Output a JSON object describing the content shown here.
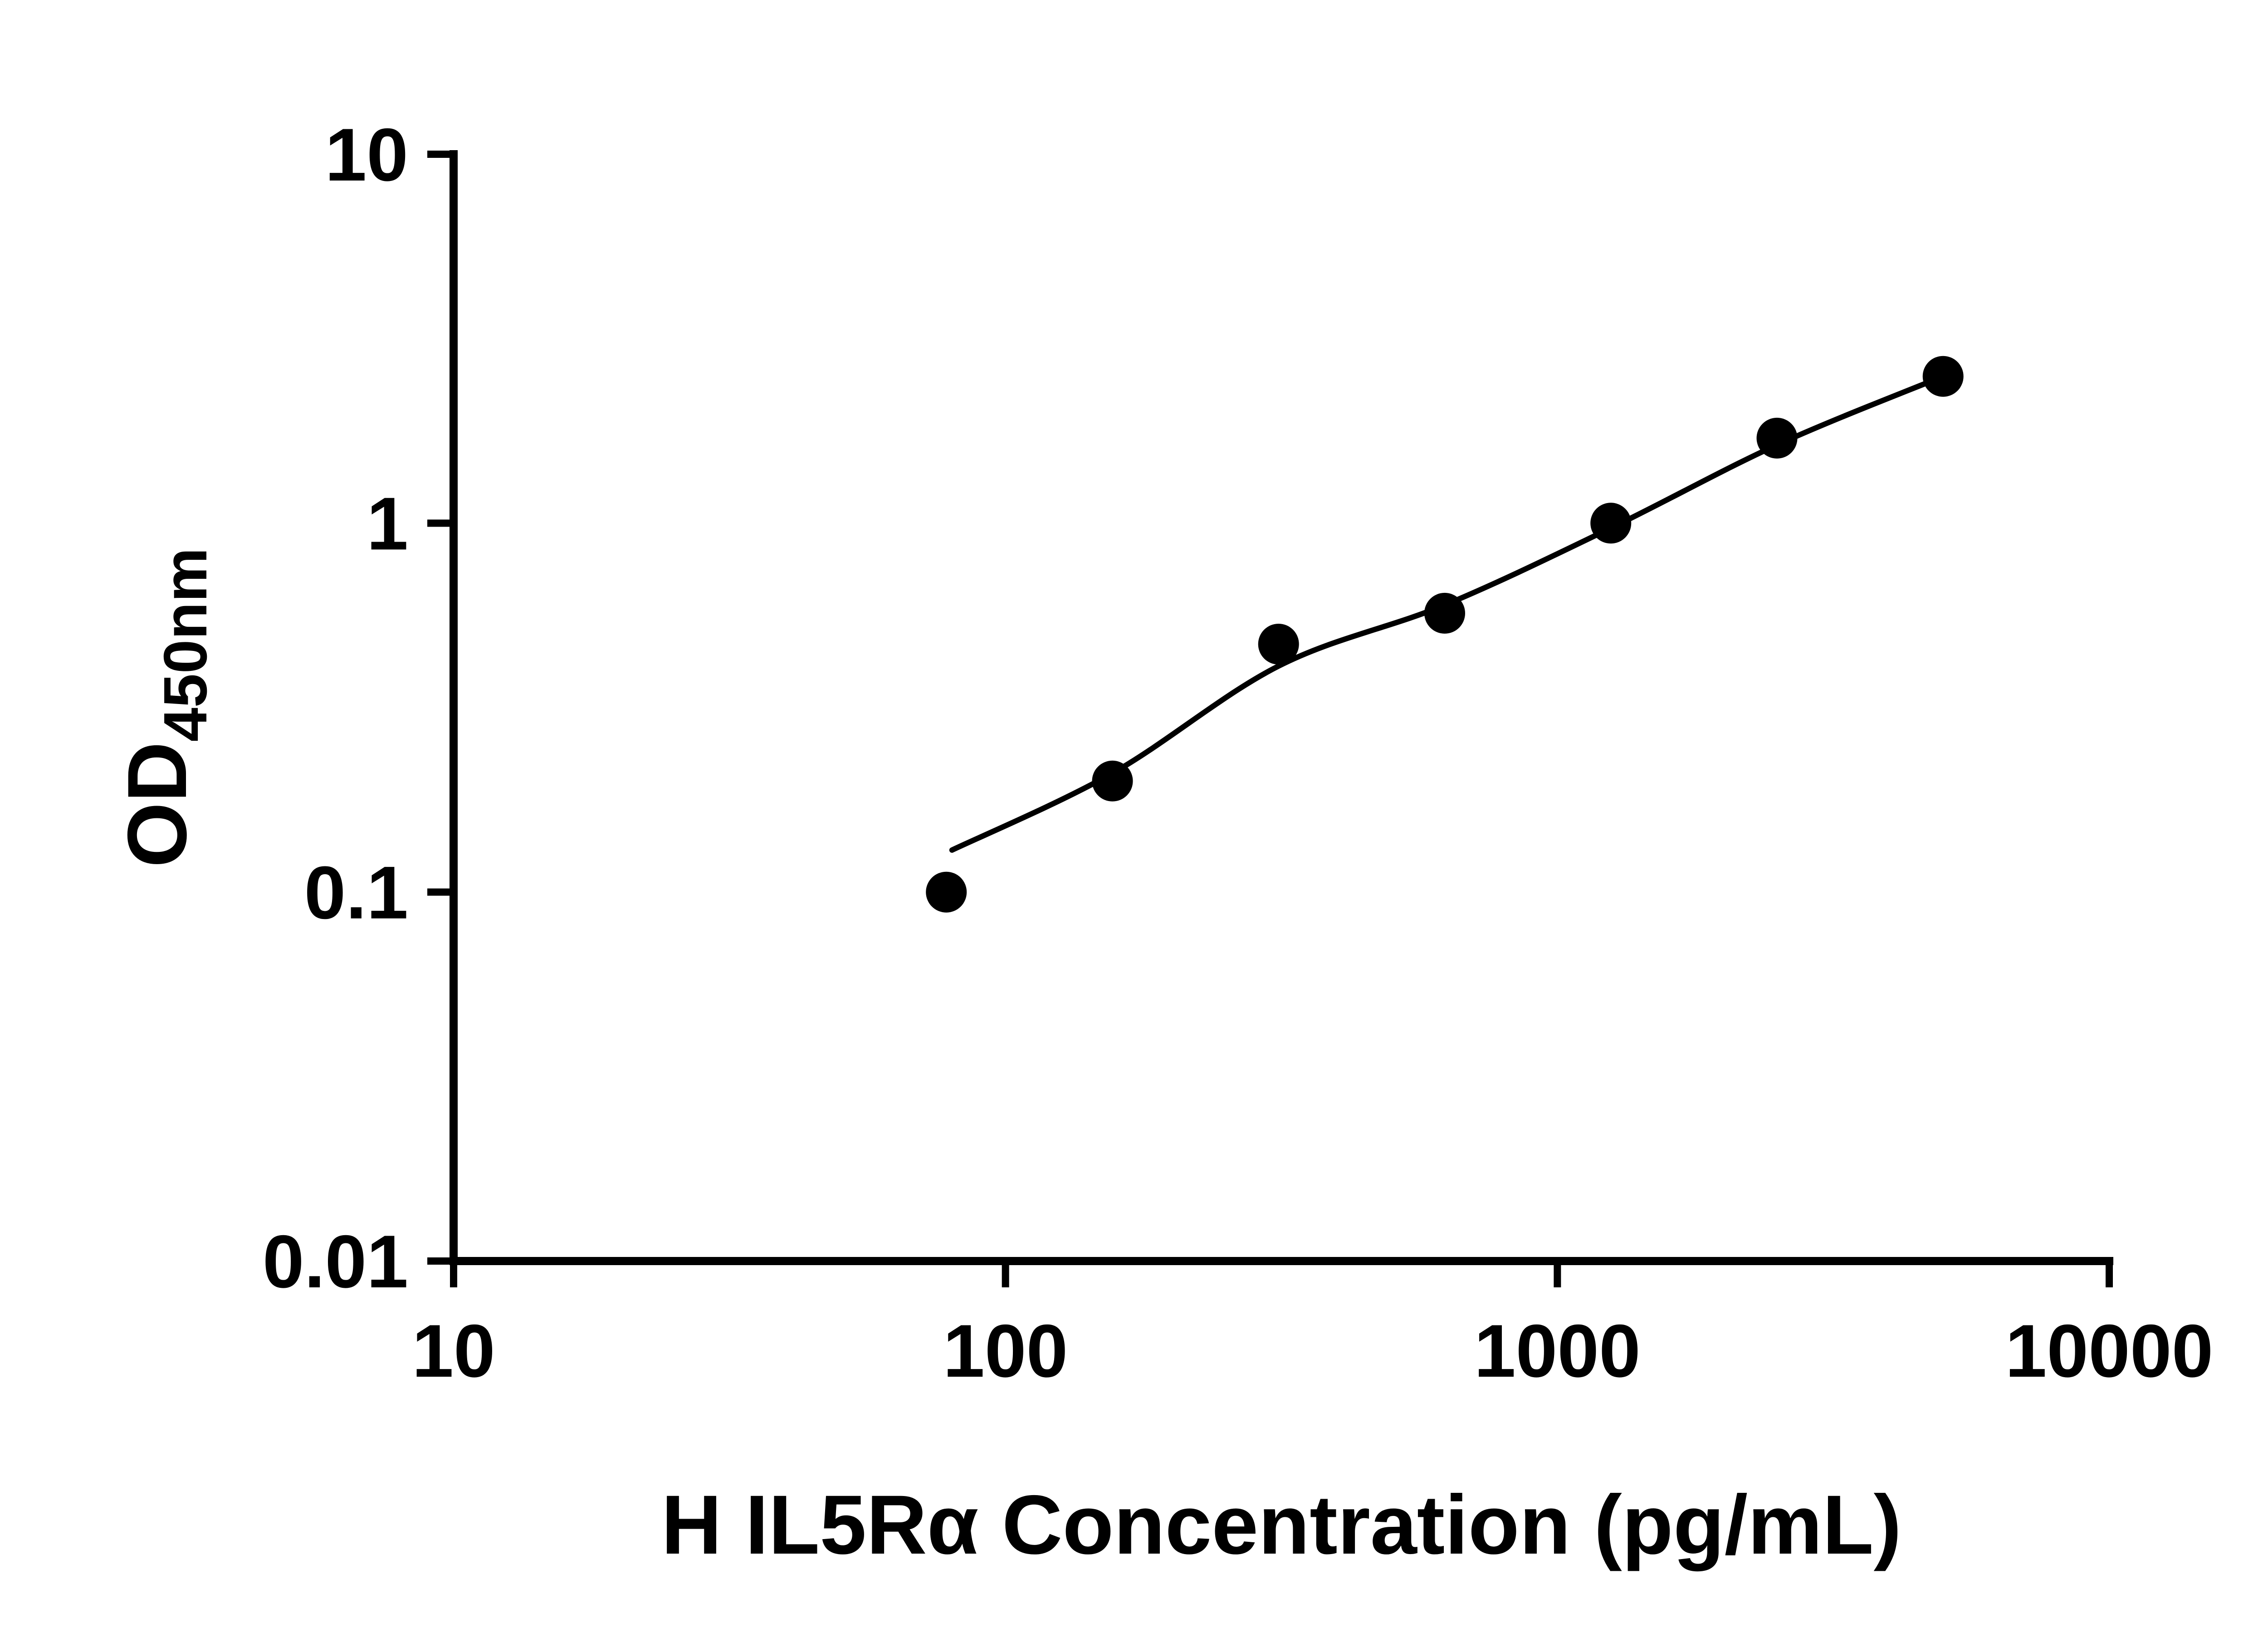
{
  "figure": {
    "background": "#ffffff",
    "ink": "#000000"
  },
  "chart_data": {
    "type": "scatter",
    "title": "",
    "xlabel": "H IL5Rα Concentration (pg/mL)",
    "ylabel": "OD450nm",
    "ylabel_main": "OD",
    "ylabel_sub": "450nm",
    "x_scale": "log",
    "y_scale": "log",
    "xlim": [
      10,
      10000
    ],
    "ylim": [
      0.01,
      10
    ],
    "grid": false,
    "legend": false,
    "marker_color": "#000000",
    "line_color": "#000000",
    "x_ticks": [
      {
        "value": 10,
        "label": "10"
      },
      {
        "value": 100,
        "label": "100"
      },
      {
        "value": 1000,
        "label": "1000"
      },
      {
        "value": 10000,
        "label": "10000"
      }
    ],
    "y_ticks": [
      {
        "value": 10,
        "label": "10"
      },
      {
        "value": 1,
        "label": "1"
      },
      {
        "value": 0.1,
        "label": "0.1"
      },
      {
        "value": 0.01,
        "label": "0.01"
      }
    ],
    "points": [
      {
        "x": 78.125,
        "y": 0.1
      },
      {
        "x": 156.25,
        "y": 0.2
      },
      {
        "x": 312.5,
        "y": 0.47
      },
      {
        "x": 625,
        "y": 0.57
      },
      {
        "x": 1250,
        "y": 1.0
      },
      {
        "x": 2500,
        "y": 1.7
      },
      {
        "x": 5000,
        "y": 2.5
      }
    ],
    "fit_curve": [
      {
        "x": 80,
        "y": 0.13
      },
      {
        "x": 156.25,
        "y": 0.21
      },
      {
        "x": 312.5,
        "y": 0.41
      },
      {
        "x": 625,
        "y": 0.6
      },
      {
        "x": 1250,
        "y": 0.97
      },
      {
        "x": 2500,
        "y": 1.63
      },
      {
        "x": 5000,
        "y": 2.5
      }
    ]
  }
}
